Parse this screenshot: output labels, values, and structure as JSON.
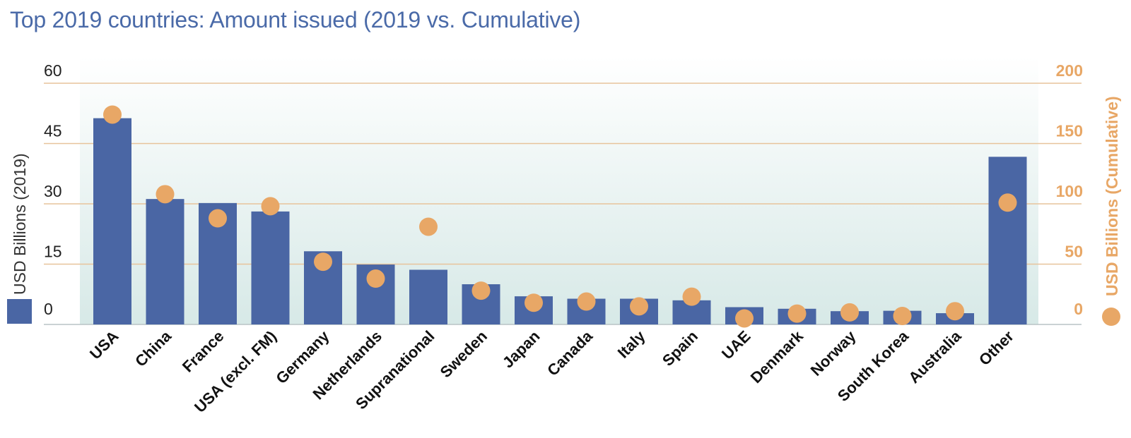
{
  "chart_data": {
    "type": "bar",
    "title": "Top 2019 countries: Amount issued (2019 vs. Cumulative)",
    "categories": [
      "USA",
      "China",
      "France",
      "USA (excl. FM)",
      "Germany",
      "Netherlands",
      "Supranational",
      "Sweden",
      "Japan",
      "Canada",
      "Italy",
      "Spain",
      "UAE",
      "Denmark",
      "Norway",
      "South Korea",
      "Australia",
      "Other"
    ],
    "series": [
      {
        "name": "USD Billions (2019)",
        "axis": "left",
        "mark": "bar",
        "color": "#4a66a4",
        "values": [
          51.3,
          31.2,
          30.2,
          28.1,
          18.2,
          14.9,
          13.6,
          10.0,
          7.0,
          6.4,
          6.4,
          6.0,
          4.3,
          3.9,
          3.3,
          3.4,
          2.8,
          41.7
        ]
      },
      {
        "name": "USD Billions (Cumulative)",
        "axis": "right",
        "mark": "dot",
        "color": "#e8a766",
        "values": [
          174,
          108,
          88,
          98,
          52,
          38,
          81,
          28,
          18,
          19,
          15,
          23,
          5,
          9,
          10,
          7,
          11,
          101
        ]
      }
    ],
    "ylabel_left": "USD Billions (2019)",
    "ylabel_right": "USD Billions (Cumulative)",
    "ylim_left": [
      0,
      60
    ],
    "ylim_right": [
      0,
      200
    ],
    "yticks_left": [
      0,
      15,
      30,
      45,
      60
    ],
    "yticks_right": [
      0,
      50,
      100,
      150,
      200
    ],
    "grid": true,
    "legend": "axis-side markers"
  }
}
